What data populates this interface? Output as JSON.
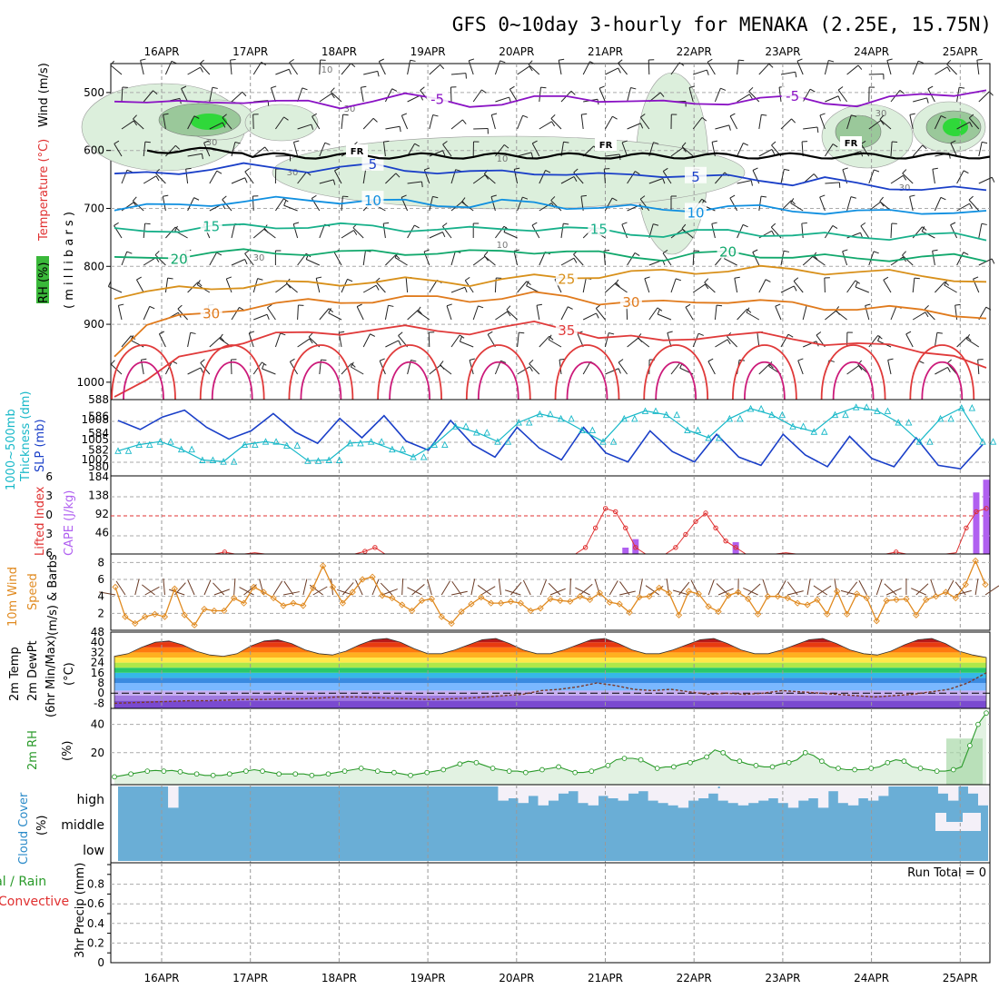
{
  "title": "GFS 0~10day 3-hourly for MENAKA (2.25E, 15.75N)",
  "dates": [
    "16APR",
    "17APR",
    "18APR",
    "19APR",
    "20APR",
    "21APR",
    "22APR",
    "23APR",
    "24APR",
    "25APR"
  ],
  "run_total": "Run Total = 0",
  "colors": {
    "temp_contours": [
      "#8a12c4",
      "#1a3fc8",
      "#0f8fe0",
      "#17b08a",
      "#11a86c",
      "#d8901a",
      "#e07a1c",
      "#e03a3a",
      "#cc1a7a"
    ],
    "slp": "#1a3fc8",
    "thickness": "#17b8c8",
    "lifted_index": "#e03030",
    "cape": "#b060f0",
    "wind_speed": "#e08a20",
    "rh": "#2a9a2a",
    "cloud": "#6aaed6"
  },
  "chart_data": [
    {
      "panel": "upper-air",
      "type": "contour",
      "ylabel_parts": [
        "RH (%)",
        "Temperature (°C)",
        "Wind (m/s)"
      ],
      "ylabel2": "( m i l l i b a r s )",
      "y_ticks": [
        "500",
        "600",
        "700",
        "800",
        "900",
        "1000"
      ],
      "ylim": [
        450,
        1030
      ],
      "freezing_label": "FR",
      "rh_labels": [
        "10",
        "30",
        "30",
        "30",
        "10",
        "10",
        "30",
        "30",
        "30"
      ],
      "isotherms": [
        {
          "label": "-5",
          "color": "#8a12c4",
          "p": [
            510,
            515,
            520,
            518,
            512,
            515,
            520,
            525,
            510,
            505,
            515,
            520,
            518,
            512,
            508,
            510,
            515,
            520,
            518,
            515,
            512,
            510,
            515,
            520,
            512,
            505,
            500,
            495
          ],
          "label_x": 0.38,
          "label_x2": 0.78
        },
        {
          "label": "5",
          "color": "#1a3fc8",
          "p": [
            645,
            640,
            635,
            632,
            628,
            630,
            632,
            630,
            628,
            632,
            635,
            640,
            638,
            636,
            640,
            645,
            642,
            640,
            645,
            648,
            650,
            655,
            650,
            660,
            662,
            665,
            668,
            670
          ],
          "label_x": 0.28,
          "label_x2": 0.66
        },
        {
          "label": "10",
          "color": "#0f8fe0",
          "p": [
            700,
            698,
            695,
            690,
            688,
            686,
            685,
            686,
            688,
            690,
            692,
            694,
            690,
            692,
            695,
            698,
            700,
            702,
            700,
            698,
            700,
            702,
            705,
            708,
            706,
            704,
            706,
            710
          ],
          "label_x": 0.3,
          "label_x2": 0.66
        },
        {
          "label": "15",
          "color": "#17b08a",
          "p": [
            740,
            738,
            735,
            733,
            732,
            730,
            730,
            731,
            732,
            734,
            736,
            738,
            735,
            733,
            735,
            740,
            742,
            745,
            742,
            740,
            742,
            745,
            748,
            750,
            748,
            746,
            748,
            752
          ],
          "label_x": 0.12,
          "label_x2": 0.56
        },
        {
          "label": "20",
          "color": "#11a86c",
          "p": [
            790,
            785,
            780,
            778,
            776,
            775,
            776,
            778,
            776,
            775,
            776,
            778,
            774,
            772,
            775,
            780,
            782,
            785,
            780,
            778,
            780,
            782,
            785,
            788,
            785,
            783,
            785,
            790
          ],
          "label_x": 0.07,
          "label_x2": 0.7
        },
        {
          "label": "25",
          "color": "#d8901a",
          "p": [
            850,
            845,
            840,
            836,
            833,
            830,
            830,
            828,
            826,
            825,
            826,
            828,
            823,
            820,
            818,
            815,
            812,
            810,
            808,
            806,
            805,
            806,
            808,
            810,
            812,
            815,
            820,
            830
          ],
          "label_x": 0.53
        },
        {
          "label": "30",
          "color": "#e07a1c",
          "p": [
            950,
            900,
            890,
            880,
            870,
            865,
            862,
            860,
            858,
            856,
            855,
            856,
            854,
            850,
            852,
            860,
            862,
            865,
            860,
            858,
            862,
            866,
            870,
            872,
            874,
            876,
            880,
            890
          ],
          "label_x": 0.12,
          "label_x2": 0.59
        },
        {
          "label": "35",
          "color": "#e03a3a",
          "p": [
            1020,
            1000,
            960,
            940,
            930,
            920,
            915,
            912,
            910,
            908,
            910,
            912,
            908,
            900,
            905,
            920,
            925,
            930,
            920,
            918,
            920,
            925,
            930,
            935,
            940,
            945,
            950,
            980
          ],
          "label_x": 0.51
        }
      ]
    },
    {
      "panel": "slp-thickness",
      "type": "line",
      "ylabel_left": "Thickness (dm)",
      "ylabel_left2": "1000~500mb",
      "ylabel_right": "SLP (mb)",
      "thickness_ticks": [
        "588",
        "586",
        "584",
        "582",
        "580"
      ],
      "slp_ticks": [
        "1008",
        "1005",
        "1002"
      ],
      "thickness_lim": [
        579,
        588
      ],
      "slp_lim": [
        1000,
        1010
      ],
      "series": [
        {
          "name": "SLP",
          "values": [
            1007.5,
            1006.2,
            1008.0,
            1009.0,
            1006.5,
            1004.8,
            1006.0,
            1008.5,
            1005.8,
            1004.2,
            1007.8,
            1005.0,
            1008.2,
            1004.5,
            1003.2,
            1007.5,
            1004.0,
            1002.2,
            1006.5,
            1003.5,
            1001.8,
            1006.5,
            1002.8,
            1001.5,
            1006.0,
            1003.0,
            1001.5,
            1005.5,
            1002.2,
            1001.0,
            1005.5,
            1002.5,
            1000.8,
            1005.2,
            1002.0,
            1000.8,
            1005.0,
            1001.0,
            1000.5,
            1004.0
          ]
        },
        {
          "name": "Thickness",
          "values": [
            581.8,
            582.6,
            583.0,
            582.0,
            580.6,
            580.4,
            582.6,
            583.0,
            582.5,
            580.5,
            580.6,
            582.8,
            583.0,
            582.0,
            581.0,
            582.6,
            585.0,
            584.2,
            583.0,
            585.5,
            586.6,
            586.0,
            584.5,
            583.0,
            586.0,
            587.0,
            586.5,
            584.5,
            583.5,
            586.0,
            587.3,
            586.5,
            585.0,
            584.3,
            586.5,
            587.5,
            587.0,
            585.5,
            583.0,
            586.0,
            587.4,
            583.0
          ]
        }
      ]
    },
    {
      "panel": "lifted-cape",
      "type": "line-bar",
      "ylabel_left": "Lifted Index",
      "ylabel_right": "CAPE (J/kg)",
      "li_ticks": [
        "6",
        "3",
        "0",
        "3",
        "6"
      ],
      "cape_ticks": [
        "184",
        "138",
        "92",
        "46"
      ],
      "cape_lim": [
        0,
        184
      ],
      "li_lim": [
        -6,
        6
      ],
      "lifted_index": [
        6,
        6,
        6,
        6,
        6,
        6,
        6,
        6,
        6,
        6,
        6,
        5.7,
        6,
        6,
        5.8,
        6,
        6,
        6,
        6,
        6,
        6,
        6,
        6,
        6,
        6,
        5.6,
        5.0,
        6,
        6,
        6,
        6,
        6,
        6,
        6,
        6,
        6,
        6,
        6,
        6,
        6,
        6,
        6,
        6,
        6,
        6,
        6,
        6,
        5,
        2,
        -1,
        -0.5,
        2,
        5,
        6,
        6,
        6,
        5,
        3,
        1,
        -0.3,
        2,
        4,
        5,
        6,
        6,
        6,
        6,
        5.8,
        6,
        6,
        6,
        6,
        6,
        6,
        6,
        6,
        6,
        6,
        5.7,
        6,
        6,
        6,
        6,
        6,
        5.8,
        2,
        -0.5,
        -1
      ],
      "cape_bars": [
        {
          "i": 51,
          "v": 15
        },
        {
          "i": 52,
          "v": 35
        },
        {
          "i": 62,
          "v": 28
        },
        {
          "i": 86,
          "v": 145
        },
        {
          "i": 87,
          "v": 175
        }
      ]
    },
    {
      "panel": "wind10m",
      "type": "line",
      "ylabel": "10m Wind Speed (m/s) & Barbs",
      "ylabel_parts": [
        "10m Wind",
        "Speed",
        "(m/s) & Barbs"
      ],
      "y_ticks": [
        "8",
        "6",
        "4",
        "2"
      ],
      "ylim": [
        0,
        9
      ],
      "values": [
        5.1,
        1.6,
        0.8,
        1.6,
        1.9,
        1.6,
        4.9,
        1.8,
        0.6,
        2.5,
        2.3,
        2.3,
        3.8,
        3.2,
        5.1,
        4.5,
        3.8,
        2.9,
        3.2,
        2.9,
        5.0,
        7.6,
        5.1,
        3.2,
        4.5,
        6.0,
        6.3,
        4.1,
        3.8,
        3.0,
        2.3,
        3.5,
        3.7,
        1.6,
        0.8,
        2.2,
        3.1,
        3.9,
        3.2,
        3.2,
        3.4,
        3.2,
        2.3,
        2.6,
        3.7,
        3.5,
        3.4,
        4.0,
        3.6,
        4.4,
        3.3,
        3.1,
        2.1,
        3.9,
        4.0,
        5.0,
        4.4,
        1.8,
        4.6,
        4.3,
        2.8,
        2.2,
        4.1,
        4.5,
        3.7,
        1.9,
        4.0,
        4.0,
        3.8,
        3.2,
        3.0,
        3.6,
        1.9,
        4.6,
        1.9,
        4.3,
        3.8,
        1.1,
        3.5,
        3.6,
        3.7,
        1.8,
        3.6,
        4.0,
        4.5,
        3.8,
        5.4,
        8.2,
        5.4
      ]
    },
    {
      "panel": "temp2m",
      "type": "area",
      "ylabel_parts": [
        "2m Temp",
        "2m DewPt",
        "(6hr Min/Max)"
      ],
      "unit": "(°C)",
      "y_ticks": [
        "48",
        "40",
        "32",
        "24",
        "16",
        "8",
        "0",
        "-8"
      ],
      "ylim": [
        -12,
        48
      ],
      "temperature": [
        29,
        31,
        36,
        40,
        41,
        38,
        33,
        30,
        29,
        31,
        37,
        41,
        42,
        39,
        34,
        31,
        30,
        33,
        38,
        42,
        43,
        40,
        35,
        31,
        31,
        34,
        38,
        42,
        43,
        39,
        34,
        31,
        31,
        34,
        38,
        42,
        43,
        39,
        34,
        31,
        31,
        34,
        38,
        42,
        43,
        39,
        34,
        31,
        31,
        34,
        38,
        42,
        43,
        39,
        34,
        31,
        30,
        33,
        38,
        42,
        43,
        39,
        33,
        30,
        28
      ],
      "dewpoint": [
        -8,
        -7.5,
        -7,
        -6.5,
        -6,
        -6,
        -5.5,
        -5,
        -5,
        -4.5,
        -4.5,
        -4,
        -3,
        -3,
        -3.5,
        -4,
        -4.5,
        -5,
        -4.5,
        -4,
        -3,
        -2,
        -1,
        2,
        3,
        5,
        8,
        6,
        3,
        2,
        3,
        1,
        -1,
        0,
        -1,
        0,
        2,
        1,
        0,
        -1,
        -2,
        -3,
        -2,
        -1,
        1,
        3,
        8,
        16
      ]
    },
    {
      "panel": "rh2m",
      "type": "area",
      "ylabel": "2m RH",
      "unit": "(%)",
      "y_ticks": [
        "40",
        "20"
      ],
      "ylim": [
        0,
        50
      ],
      "values": [
        3,
        4,
        5,
        6,
        7,
        7.5,
        7,
        7.5,
        6.5,
        5,
        5,
        4,
        4,
        4,
        5,
        6,
        7,
        8,
        7,
        6,
        5,
        5,
        5,
        5,
        4,
        4,
        5,
        6,
        7,
        8,
        9,
        8,
        7,
        6,
        6,
        5,
        4,
        5,
        6,
        7,
        8,
        10,
        12,
        14,
        13,
        11,
        9,
        8,
        7,
        7,
        6,
        7,
        8,
        9,
        10,
        8,
        6,
        6,
        7,
        9,
        11,
        15,
        16,
        16,
        15,
        12,
        9,
        10,
        10,
        12,
        13,
        15,
        17,
        22,
        20,
        15,
        14,
        12,
        11,
        10,
        10,
        12,
        13,
        15,
        20,
        18,
        14,
        10,
        9,
        8,
        8,
        8,
        9,
        10,
        13,
        15,
        14,
        10,
        9,
        8,
        7,
        7,
        8,
        10,
        25,
        40,
        48
      ]
    },
    {
      "panel": "cloud",
      "type": "table",
      "ylabel": "Cloud Cover",
      "unit": "(%)",
      "levels": [
        "high",
        "middle",
        "low"
      ],
      "high_clear": [
        0,
        0,
        0,
        0,
        0,
        0.9,
        0,
        0,
        0,
        0,
        0,
        0,
        0,
        0,
        0,
        0,
        0,
        0,
        0,
        0,
        0,
        0,
        0,
        0,
        0,
        0,
        0,
        0,
        0,
        0,
        0,
        0,
        0,
        0,
        0,
        0,
        0,
        0,
        0.6,
        0.5,
        0.7,
        0.4,
        0.8,
        0.6,
        0.3,
        0.2,
        0.7,
        0.8,
        0.4,
        0.5,
        0.6,
        0.3,
        0.2,
        0.6,
        0.7,
        0.8,
        0.9,
        0.6,
        0.5,
        0.3,
        0.6,
        0.7,
        0.8,
        0.7,
        0.6,
        0.5,
        0.7,
        0.9,
        0.6,
        0.5,
        0.9,
        0.2,
        0.7,
        0.8,
        0.5,
        0.6,
        0.4,
        0,
        0,
        0,
        0,
        0,
        0.3,
        0.6,
        0,
        0.3,
        0.8
      ]
    },
    {
      "panel": "precip",
      "type": "bar",
      "ylabel_left_parts": [
        "Total / Rain",
        "Convective"
      ],
      "ylabel": "3hr Precip (mm)",
      "y_ticks": [
        "0.8",
        "0.6",
        "0.4",
        "0.2",
        "0"
      ],
      "ylim": [
        0,
        1
      ],
      "values": []
    }
  ]
}
